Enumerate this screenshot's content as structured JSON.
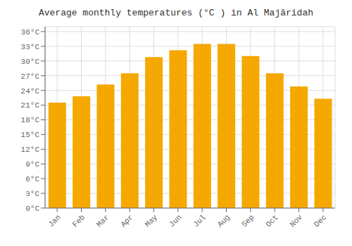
{
  "chart_data": {
    "type": "bar",
    "title": "Average monthly temperatures (°C ) in Al Majāridah",
    "categories": [
      "Jan",
      "Feb",
      "Mar",
      "Apr",
      "May",
      "Jun",
      "Jul",
      "Aug",
      "Sep",
      "Oct",
      "Nov",
      "Dec"
    ],
    "values": [
      21.5,
      22.8,
      25.2,
      27.5,
      30.8,
      32.2,
      33.5,
      33.5,
      31.0,
      27.5,
      24.8,
      22.3
    ],
    "color": "#F5A800",
    "ylim": [
      0,
      37
    ],
    "yticks": [
      {
        "value": 0,
        "label": "0°C"
      },
      {
        "value": 3,
        "label": "3°C"
      },
      {
        "value": 6,
        "label": "6°C"
      },
      {
        "value": 9,
        "label": "9°C"
      },
      {
        "value": 12,
        "label": "12°C"
      },
      {
        "value": 15,
        "label": "15°C"
      },
      {
        "value": 18,
        "label": "18°C"
      },
      {
        "value": 21,
        "label": "21°C"
      },
      {
        "value": 24,
        "label": "24°C"
      },
      {
        "value": 27,
        "label": "27°C"
      },
      {
        "value": 30,
        "label": "30°C"
      },
      {
        "value": 33,
        "label": "33°C"
      },
      {
        "value": 36,
        "label": "36°C"
      }
    ],
    "grid": true
  }
}
